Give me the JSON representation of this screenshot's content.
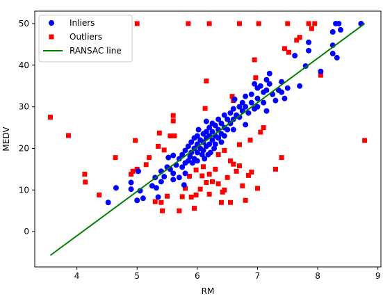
{
  "chart_data": {
    "type": "scatter",
    "xlabel": "RM",
    "ylabel": "MEDV",
    "xlim": [
      3.3,
      9.05
    ],
    "ylim": [
      -8.5,
      53
    ],
    "xticks": [
      4,
      5,
      6,
      7,
      8,
      9
    ],
    "yticks": [
      0,
      10,
      20,
      30,
      40,
      50
    ],
    "grid": false,
    "legend": "top-left",
    "series": [
      {
        "name": "Inliers",
        "marker": "circle",
        "color": "#0000ff",
        "points": [
          [
            4.52,
            7.0
          ],
          [
            4.65,
            10.5
          ],
          [
            4.9,
            10.2
          ],
          [
            4.9,
            11.8
          ],
          [
            5.0,
            7.5
          ],
          [
            5.02,
            14.5
          ],
          [
            5.05,
            9.8
          ],
          [
            5.1,
            8.0
          ],
          [
            5.25,
            11.0
          ],
          [
            5.3,
            13.0
          ],
          [
            5.32,
            10.5
          ],
          [
            5.35,
            8.3
          ],
          [
            5.4,
            12.0
          ],
          [
            5.4,
            14.5
          ],
          [
            5.45,
            13.2
          ],
          [
            5.5,
            15.5
          ],
          [
            5.55,
            15.0
          ],
          [
            5.6,
            14.0
          ],
          [
            5.6,
            12.5
          ],
          [
            5.65,
            16.0
          ],
          [
            5.7,
            17.5
          ],
          [
            5.7,
            13.0
          ],
          [
            5.75,
            18.5
          ],
          [
            5.75,
            15.5
          ],
          [
            5.8,
            19.5
          ],
          [
            5.8,
            16.5
          ],
          [
            5.8,
            14.0
          ],
          [
            5.85,
            17.0
          ],
          [
            5.85,
            20.5
          ],
          [
            5.88,
            18.0
          ],
          [
            5.9,
            21.5
          ],
          [
            5.9,
            19.0
          ],
          [
            5.92,
            16.5
          ],
          [
            5.95,
            22.5
          ],
          [
            5.95,
            20.0
          ],
          [
            5.95,
            17.5
          ],
          [
            6.0,
            23.0
          ],
          [
            6.0,
            21.0
          ],
          [
            6.0,
            19.0
          ],
          [
            6.0,
            17.0
          ],
          [
            6.02,
            24.5
          ],
          [
            6.05,
            22.0
          ],
          [
            6.05,
            20.0
          ],
          [
            6.08,
            18.5
          ],
          [
            6.1,
            23.5
          ],
          [
            6.1,
            21.5
          ],
          [
            6.1,
            19.5
          ],
          [
            6.12,
            17.5
          ],
          [
            6.15,
            24.0
          ],
          [
            6.15,
            22.5
          ],
          [
            6.15,
            20.5
          ],
          [
            6.18,
            18.5
          ],
          [
            6.2,
            25.0
          ],
          [
            6.2,
            23.0
          ],
          [
            6.2,
            21.0
          ],
          [
            6.22,
            19.0
          ],
          [
            6.25,
            26.0
          ],
          [
            6.25,
            24.0
          ],
          [
            6.25,
            22.0
          ],
          [
            6.28,
            20.0
          ],
          [
            6.3,
            25.5
          ],
          [
            6.3,
            23.0
          ],
          [
            6.3,
            21.0
          ],
          [
            6.35,
            27.0
          ],
          [
            6.35,
            24.5
          ],
          [
            6.35,
            22.5
          ],
          [
            6.4,
            26.0
          ],
          [
            6.4,
            23.5
          ],
          [
            6.4,
            21.5
          ],
          [
            6.45,
            28.0
          ],
          [
            6.45,
            25.0
          ],
          [
            6.45,
            23.0
          ],
          [
            6.5,
            27.0
          ],
          [
            6.5,
            24.5
          ],
          [
            6.55,
            28.5
          ],
          [
            6.55,
            26.0
          ],
          [
            6.6,
            29.5
          ],
          [
            6.6,
            27.0
          ],
          [
            6.6,
            24.5
          ],
          [
            6.65,
            28.0
          ],
          [
            6.7,
            30.0
          ],
          [
            6.7,
            27.5
          ],
          [
            6.75,
            31.0
          ],
          [
            6.75,
            29.0
          ],
          [
            6.8,
            32.5
          ],
          [
            6.8,
            30.0
          ],
          [
            6.85,
            28.5
          ],
          [
            6.9,
            33.0
          ],
          [
            6.9,
            31.0
          ],
          [
            6.95,
            29.5
          ],
          [
            7.0,
            34.5
          ],
          [
            7.0,
            32.0
          ],
          [
            7.0,
            30.0
          ],
          [
            7.05,
            35.0
          ],
          [
            7.1,
            33.5
          ],
          [
            7.1,
            31.0
          ],
          [
            7.15,
            36.5
          ],
          [
            7.15,
            34.0
          ],
          [
            7.15,
            29.0
          ],
          [
            7.2,
            38.0
          ],
          [
            7.2,
            35.5
          ],
          [
            7.25,
            33.0
          ],
          [
            7.3,
            31.5
          ],
          [
            7.35,
            34.0
          ],
          [
            7.4,
            36.0
          ],
          [
            7.4,
            33.5
          ],
          [
            7.45,
            32.0
          ],
          [
            7.5,
            34.5
          ],
          [
            7.62,
            42.3
          ],
          [
            7.7,
            35.0
          ],
          [
            7.8,
            39.8
          ],
          [
            7.85,
            43.5
          ],
          [
            7.85,
            45.5
          ],
          [
            8.05,
            38.5
          ],
          [
            8.25,
            48.0
          ],
          [
            8.25,
            44.8
          ],
          [
            8.25,
            42.8
          ],
          [
            8.3,
            50.0
          ],
          [
            8.32,
            41.8
          ],
          [
            8.35,
            50.0
          ],
          [
            8.38,
            48.5
          ],
          [
            8.72,
            50.0
          ],
          [
            5.78,
            11.2
          ],
          [
            5.6,
            18.3
          ],
          [
            6.62,
            31.8
          ],
          [
            6.95,
            35.5
          ],
          [
            6.15,
            26.5
          ],
          [
            5.52,
            17.8
          ],
          [
            6.8,
            25.7
          ]
        ]
      },
      {
        "name": "Outliers",
        "marker": "square",
        "color": "#ff0000",
        "points": [
          [
            3.56,
            27.5
          ],
          [
            3.86,
            23.1
          ],
          [
            4.13,
            13.8
          ],
          [
            4.14,
            11.9
          ],
          [
            4.37,
            8.8
          ],
          [
            4.64,
            17.8
          ],
          [
            4.9,
            13.8
          ],
          [
            4.93,
            14.5
          ],
          [
            4.97,
            21.9
          ],
          [
            5.0,
            15.0
          ],
          [
            5.0,
            50.0
          ],
          [
            5.15,
            16.1
          ],
          [
            5.2,
            17.8
          ],
          [
            5.3,
            7.2
          ],
          [
            5.35,
            20.5
          ],
          [
            5.37,
            23.7
          ],
          [
            5.4,
            7.0
          ],
          [
            5.42,
            5.0
          ],
          [
            5.45,
            19.6
          ],
          [
            5.5,
            8.5
          ],
          [
            5.55,
            23.0
          ],
          [
            5.6,
            27.9
          ],
          [
            5.6,
            26.6
          ],
          [
            5.62,
            23.0
          ],
          [
            5.7,
            5.0
          ],
          [
            5.75,
            8.4
          ],
          [
            5.8,
            10.4
          ],
          [
            5.85,
            50.0
          ],
          [
            5.87,
            13.3
          ],
          [
            5.9,
            8.3
          ],
          [
            5.95,
            5.6
          ],
          [
            5.98,
            8.8
          ],
          [
            6.05,
            10.2
          ],
          [
            6.08,
            13.4
          ],
          [
            6.1,
            15.6
          ],
          [
            6.13,
            29.6
          ],
          [
            6.15,
            36.2
          ],
          [
            6.2,
            50.0
          ],
          [
            6.2,
            9.0
          ],
          [
            6.25,
            12.0
          ],
          [
            6.3,
            15.0
          ],
          [
            6.35,
            11.5
          ],
          [
            6.4,
            7.0
          ],
          [
            6.45,
            10.0
          ],
          [
            6.5,
            13.0
          ],
          [
            6.55,
            17.0
          ],
          [
            6.55,
            7.0
          ],
          [
            6.58,
            32.5
          ],
          [
            6.6,
            31.5
          ],
          [
            6.65,
            14.5
          ],
          [
            6.7,
            20.9
          ],
          [
            6.7,
            50.0
          ],
          [
            6.75,
            11.0
          ],
          [
            6.8,
            7.5
          ],
          [
            6.85,
            13.5
          ],
          [
            6.88,
            22.0
          ],
          [
            6.95,
            41.3
          ],
          [
            6.97,
            37.0
          ],
          [
            7.0,
            10.4
          ],
          [
            7.02,
            50.0
          ],
          [
            7.05,
            23.9
          ],
          [
            7.1,
            25.0
          ],
          [
            7.3,
            15.0
          ],
          [
            7.4,
            17.8
          ],
          [
            7.45,
            44.0
          ],
          [
            7.5,
            50.0
          ],
          [
            7.52,
            43.1
          ],
          [
            7.65,
            46.0
          ],
          [
            7.7,
            46.7
          ],
          [
            7.85,
            50.0
          ],
          [
            7.9,
            48.8
          ],
          [
            7.95,
            50.0
          ],
          [
            8.05,
            37.6
          ],
          [
            8.78,
            21.9
          ],
          [
            6.45,
            19.5
          ],
          [
            6.35,
            18.5
          ],
          [
            6.6,
            16.2
          ],
          [
            6.9,
            14.3
          ],
          [
            6.2,
            13.8
          ],
          [
            5.98,
            14.8
          ],
          [
            6.42,
            9.5
          ],
          [
            6.7,
            15.8
          ],
          [
            6.15,
            11.8
          ]
        ]
      },
      {
        "name": "RANSAC line",
        "marker": "line",
        "color": "#008000",
        "x": [
          3.56,
          8.78
        ],
        "y": [
          -5.7,
          50.0
        ]
      }
    ]
  }
}
